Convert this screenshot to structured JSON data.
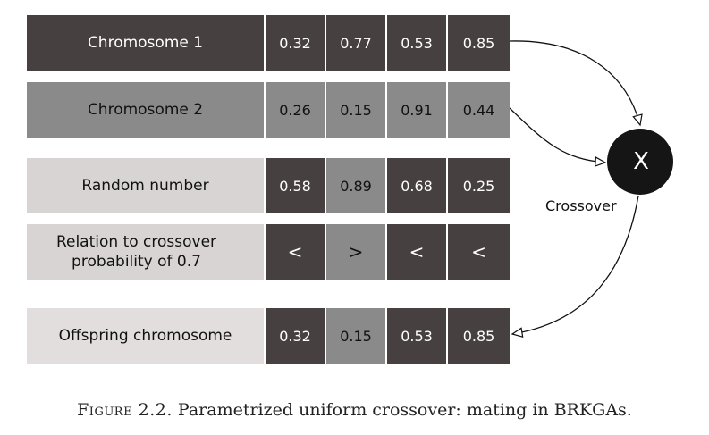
{
  "rows": [
    {
      "label": "Chromosome 1",
      "values": [
        "0.32",
        "0.77",
        "0.53",
        "0.85"
      ]
    },
    {
      "label": "Chromosome 2",
      "values": [
        "0.26",
        "0.15",
        "0.91",
        "0.44"
      ]
    },
    {
      "label": "Random number",
      "values": [
        "0.58",
        "0.89",
        "0.68",
        "0.25"
      ]
    },
    {
      "label_line1": "Relation to crossover",
      "label_line2": "probability of 0.7",
      "values": [
        "<",
        ">",
        "<",
        "<"
      ]
    },
    {
      "label": "Offspring chromosome",
      "values": [
        "0.32",
        "0.15",
        "0.53",
        "0.85"
      ]
    }
  ],
  "crossover": {
    "symbol": "X",
    "label": "Crossover"
  },
  "caption": {
    "figure": "Figure 2.2.",
    "text": "Parametrized uniform crossover: mating in BRKGAs."
  },
  "colors": {
    "dark": "#474040",
    "mid": "#8a8a8a",
    "light": "#d8d4d4",
    "node": "#151515"
  }
}
